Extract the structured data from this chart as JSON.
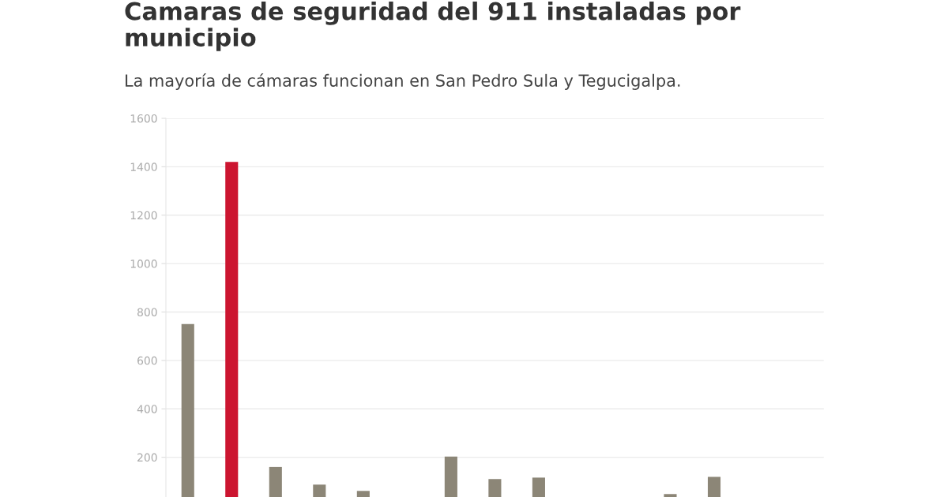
{
  "chart_data": {
    "type": "bar",
    "title": "Camaras de seguridad del 911 instaladas por\nmunicipio",
    "subtitle": "La mayoría de cámaras funcionan en San Pedro Sula y Tegucigalpa.",
    "categories": [
      null,
      null,
      null,
      null,
      null,
      null,
      null,
      null,
      null,
      null,
      null,
      null,
      null,
      null,
      null
    ],
    "values": [
      750,
      1420,
      160,
      87,
      61,
      null,
      203,
      110,
      116,
      null,
      null,
      48,
      119,
      null,
      null
    ],
    "colors": [
      "#8c8677",
      "#cc1530",
      "#8c8677",
      "#8c8677",
      "#8c8677",
      "#8c8677",
      "#8c8677",
      "#8c8677",
      "#8c8677",
      "#8c8677",
      "#8c8677",
      "#8c8677",
      "#8c8677",
      "#8c8677",
      "#8c8677"
    ],
    "ylim": [
      0,
      1600
    ],
    "yticks": [
      200,
      400,
      600,
      800,
      1000,
      1200,
      1400,
      1600
    ],
    "grid": "y",
    "legend": false
  }
}
